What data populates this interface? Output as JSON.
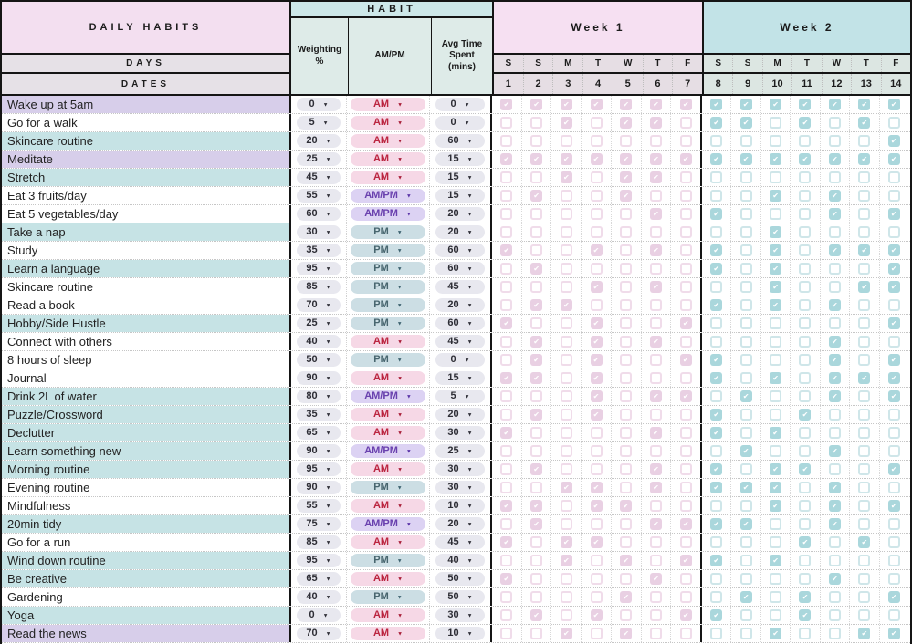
{
  "header": {
    "daily_habits_label": "DAILY HABITS",
    "days_label": "DAYS",
    "dates_label": "DATES",
    "habit_label": "HABIT",
    "weighting_label": "Weighting %",
    "ampm_label": "AM/PM",
    "avg_time_label": "Avg Time Spent (mins)",
    "week1_label": "Week 1",
    "week2_label": "Week 2",
    "week1_days": [
      "S",
      "S",
      "M",
      "T",
      "W",
      "T",
      "F"
    ],
    "week1_dates": [
      "1",
      "2",
      "3",
      "4",
      "5",
      "6",
      "7"
    ],
    "week2_days": [
      "S",
      "S",
      "M",
      "T",
      "W",
      "T",
      "F"
    ],
    "week2_dates": [
      "8",
      "9",
      "10",
      "11",
      "12",
      "13",
      "14"
    ]
  },
  "colors": {
    "daily_habits_bg": "#f3dff0",
    "sub_bar_bg": "#e6e1e7",
    "habit_bar_bg": "#cde8e9",
    "habit_cols_bg": "#deebe8",
    "week1_bg": "#f6e0f2",
    "week2_bg": "#c2e3e7",
    "row_teal": "#c6e3e5",
    "row_lavender": "#d7ceea",
    "am_pill_bg": "#f6d8e6",
    "am_pill_text": "#bb2540",
    "pm_pill_bg": "#ccdee4",
    "pm_pill_text": "#48666f",
    "ampm_pill_bg": "#dcd2f3",
    "ampm_pill_text": "#6940ae",
    "gray_pill_bg": "#e8e8ef",
    "checkbox_pink_on": "#e9d0e3",
    "checkbox_teal_on": "#aad7dc",
    "border_black": "#151515"
  },
  "rows": [
    {
      "name": "Wake up at 5am",
      "tint": "lavender",
      "weight": "0",
      "ampm": "AM",
      "time": "0",
      "week1": [
        1,
        1,
        1,
        1,
        1,
        1,
        1
      ],
      "week2": [
        1,
        1,
        1,
        1,
        1,
        1,
        1
      ]
    },
    {
      "name": "Go for a walk",
      "tint": "white",
      "weight": "5",
      "ampm": "AM",
      "time": "0",
      "week1": [
        0,
        0,
        1,
        0,
        1,
        1,
        0
      ],
      "week2": [
        1,
        1,
        0,
        1,
        0,
        1,
        0
      ]
    },
    {
      "name": "Skincare routine",
      "tint": "teal",
      "weight": "20",
      "ampm": "AM",
      "time": "60",
      "week1": [
        0,
        0,
        0,
        0,
        0,
        0,
        0
      ],
      "week2": [
        0,
        0,
        0,
        0,
        0,
        0,
        1
      ]
    },
    {
      "name": "Meditate",
      "tint": "lavender",
      "weight": "25",
      "ampm": "AM",
      "time": "15",
      "week1": [
        1,
        1,
        1,
        1,
        1,
        1,
        1
      ],
      "week2": [
        1,
        1,
        1,
        1,
        1,
        1,
        1
      ]
    },
    {
      "name": "Stretch",
      "tint": "teal",
      "weight": "45",
      "ampm": "AM",
      "time": "15",
      "week1": [
        0,
        0,
        1,
        0,
        1,
        1,
        0
      ],
      "week2": [
        0,
        0,
        0,
        0,
        0,
        0,
        0
      ]
    },
    {
      "name": "Eat 3 fruits/day",
      "tint": "white",
      "weight": "55",
      "ampm": "AM/PM",
      "time": "15",
      "week1": [
        0,
        1,
        0,
        0,
        1,
        0,
        0
      ],
      "week2": [
        0,
        0,
        1,
        0,
        1,
        0,
        0
      ]
    },
    {
      "name": "Eat 5 vegetables/day",
      "tint": "white",
      "weight": "60",
      "ampm": "AM/PM",
      "time": "20",
      "week1": [
        0,
        0,
        0,
        0,
        0,
        1,
        0
      ],
      "week2": [
        1,
        0,
        0,
        0,
        1,
        0,
        1
      ]
    },
    {
      "name": "Take a nap",
      "tint": "teal",
      "weight": "30",
      "ampm": "PM",
      "time": "20",
      "week1": [
        0,
        0,
        0,
        0,
        0,
        0,
        0
      ],
      "week2": [
        0,
        0,
        1,
        0,
        0,
        0,
        0
      ]
    },
    {
      "name": "Study",
      "tint": "white",
      "weight": "35",
      "ampm": "PM",
      "time": "60",
      "week1": [
        1,
        0,
        0,
        1,
        0,
        1,
        0
      ],
      "week2": [
        1,
        0,
        1,
        0,
        1,
        1,
        1
      ]
    },
    {
      "name": "Learn a language",
      "tint": "teal",
      "weight": "95",
      "ampm": "PM",
      "time": "60",
      "week1": [
        0,
        1,
        0,
        0,
        0,
        0,
        0
      ],
      "week2": [
        1,
        0,
        1,
        0,
        0,
        0,
        1
      ]
    },
    {
      "name": "Skincare routine",
      "tint": "white",
      "weight": "85",
      "ampm": "PM",
      "time": "45",
      "week1": [
        0,
        0,
        0,
        1,
        0,
        1,
        0
      ],
      "week2": [
        0,
        0,
        1,
        0,
        0,
        1,
        1
      ]
    },
    {
      "name": "Read a book",
      "tint": "white",
      "weight": "70",
      "ampm": "PM",
      "time": "20",
      "week1": [
        0,
        1,
        1,
        0,
        0,
        0,
        0
      ],
      "week2": [
        1,
        0,
        1,
        0,
        1,
        0,
        0
      ]
    },
    {
      "name": "Hobby/Side Hustle",
      "tint": "teal",
      "weight": "25",
      "ampm": "PM",
      "time": "60",
      "week1": [
        1,
        0,
        0,
        1,
        0,
        0,
        1
      ],
      "week2": [
        0,
        0,
        0,
        0,
        0,
        0,
        1
      ]
    },
    {
      "name": "Connect with others",
      "tint": "white",
      "weight": "40",
      "ampm": "AM",
      "time": "45",
      "week1": [
        0,
        1,
        0,
        1,
        0,
        1,
        0
      ],
      "week2": [
        0,
        0,
        0,
        0,
        1,
        0,
        0
      ]
    },
    {
      "name": "8 hours of sleep",
      "tint": "white",
      "weight": "50",
      "ampm": "PM",
      "time": "0",
      "week1": [
        0,
        1,
        0,
        1,
        0,
        0,
        1
      ],
      "week2": [
        1,
        0,
        0,
        0,
        1,
        0,
        1
      ]
    },
    {
      "name": "Journal",
      "tint": "white",
      "weight": "90",
      "ampm": "AM",
      "time": "15",
      "week1": [
        1,
        1,
        0,
        1,
        0,
        0,
        0
      ],
      "week2": [
        1,
        0,
        1,
        0,
        1,
        1,
        1
      ]
    },
    {
      "name": "Drink 2L of water",
      "tint": "teal",
      "weight": "80",
      "ampm": "AM/PM",
      "time": "5",
      "week1": [
        0,
        0,
        0,
        1,
        0,
        1,
        1
      ],
      "week2": [
        0,
        1,
        0,
        0,
        1,
        0,
        1
      ]
    },
    {
      "name": "Puzzle/Crossword",
      "tint": "teal",
      "weight": "35",
      "ampm": "AM",
      "time": "20",
      "week1": [
        0,
        1,
        0,
        1,
        0,
        0,
        0
      ],
      "week2": [
        1,
        0,
        0,
        1,
        0,
        0,
        0
      ]
    },
    {
      "name": "Declutter",
      "tint": "teal",
      "weight": "65",
      "ampm": "AM",
      "time": "30",
      "week1": [
        1,
        0,
        0,
        0,
        0,
        1,
        0
      ],
      "week2": [
        1,
        0,
        1,
        0,
        0,
        0,
        0
      ]
    },
    {
      "name": "Learn something new",
      "tint": "teal",
      "weight": "90",
      "ampm": "AM/PM",
      "time": "25",
      "week1": [
        0,
        0,
        0,
        0,
        0,
        0,
        0
      ],
      "week2": [
        0,
        1,
        0,
        0,
        1,
        0,
        0
      ]
    },
    {
      "name": "Morning routine",
      "tint": "teal",
      "weight": "95",
      "ampm": "AM",
      "time": "30",
      "week1": [
        0,
        1,
        0,
        0,
        0,
        1,
        0
      ],
      "week2": [
        1,
        0,
        1,
        1,
        0,
        0,
        1
      ]
    },
    {
      "name": "Evening routine",
      "tint": "white",
      "weight": "90",
      "ampm": "PM",
      "time": "30",
      "week1": [
        0,
        0,
        1,
        1,
        0,
        1,
        0
      ],
      "week2": [
        1,
        1,
        1,
        0,
        1,
        0,
        0
      ]
    },
    {
      "name": "Mindfulness",
      "tint": "white",
      "weight": "55",
      "ampm": "AM",
      "time": "10",
      "week1": [
        1,
        1,
        0,
        1,
        1,
        0,
        0
      ],
      "week2": [
        0,
        0,
        1,
        0,
        1,
        0,
        1
      ]
    },
    {
      "name": "20min tidy",
      "tint": "teal",
      "weight": "75",
      "ampm": "AM/PM",
      "time": "20",
      "week1": [
        0,
        1,
        0,
        0,
        0,
        1,
        1
      ],
      "week2": [
        1,
        1,
        0,
        0,
        1,
        0,
        0
      ]
    },
    {
      "name": "Go for a run",
      "tint": "white",
      "weight": "85",
      "ampm": "AM",
      "time": "45",
      "week1": [
        1,
        0,
        1,
        1,
        0,
        0,
        0
      ],
      "week2": [
        0,
        0,
        0,
        1,
        0,
        1,
        0
      ]
    },
    {
      "name": "Wind down routine",
      "tint": "teal",
      "weight": "95",
      "ampm": "PM",
      "time": "40",
      "week1": [
        0,
        0,
        1,
        0,
        1,
        0,
        1
      ],
      "week2": [
        1,
        0,
        1,
        0,
        0,
        0,
        0
      ]
    },
    {
      "name": "Be creative",
      "tint": "teal",
      "weight": "65",
      "ampm": "AM",
      "time": "50",
      "week1": [
        1,
        0,
        0,
        0,
        0,
        1,
        0
      ],
      "week2": [
        0,
        0,
        0,
        0,
        1,
        0,
        0
      ]
    },
    {
      "name": "Gardening",
      "tint": "white",
      "weight": "40",
      "ampm": "PM",
      "time": "50",
      "week1": [
        0,
        0,
        0,
        0,
        1,
        0,
        0
      ],
      "week2": [
        0,
        1,
        0,
        1,
        0,
        0,
        1
      ]
    },
    {
      "name": "Yoga",
      "tint": "teal",
      "weight": "0",
      "ampm": "AM",
      "time": "30",
      "week1": [
        0,
        1,
        0,
        1,
        0,
        0,
        1
      ],
      "week2": [
        1,
        0,
        0,
        1,
        0,
        0,
        0
      ]
    },
    {
      "name": "Read the news",
      "tint": "lavender",
      "weight": "70",
      "ampm": "AM",
      "time": "10",
      "week1": [
        0,
        0,
        1,
        0,
        1,
        0,
        0
      ],
      "week2": [
        0,
        0,
        1,
        0,
        0,
        1,
        1
      ]
    }
  ]
}
